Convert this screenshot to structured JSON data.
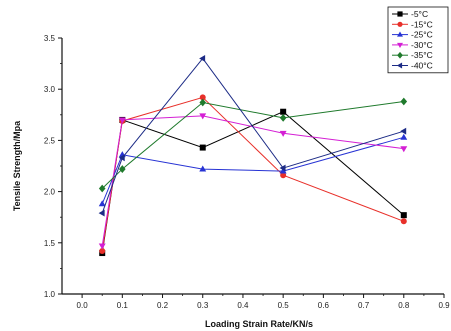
{
  "chart_data": {
    "type": "line",
    "xlabel": "Loading Strain Rate/KN/s",
    "ylabel": "Tensile Strength/Mpa",
    "xlim": [
      -0.05,
      0.9
    ],
    "ylim": [
      1.0,
      3.5
    ],
    "x_ticks": [
      0.0,
      0.1,
      0.2,
      0.3,
      0.4,
      0.5,
      0.6,
      0.7,
      0.8,
      0.9
    ],
    "x_tick_labels": [
      "0.0",
      "0.1",
      "0.2",
      "0.3",
      "0.4",
      "0.5",
      "0.6",
      "0.7",
      "0.8",
      "0.9"
    ],
    "y_ticks": [
      1.0,
      1.5,
      2.0,
      2.5,
      3.0,
      3.5
    ],
    "y_tick_labels": [
      "1.0",
      "1.5",
      "2.0",
      "2.5",
      "3.0",
      "3.5"
    ],
    "grid": false,
    "legend_position": "top-right",
    "series": [
      {
        "name": "-5°C",
        "color": "#000000",
        "marker": "square",
        "x": [
          0.05,
          0.1,
          0.3,
          0.5,
          0.8
        ],
        "y": [
          1.4,
          2.7,
          2.43,
          2.78,
          1.77
        ]
      },
      {
        "name": "-15°C",
        "color": "#e8302a",
        "marker": "circle",
        "x": [
          0.05,
          0.1,
          0.3,
          0.5,
          0.8
        ],
        "y": [
          1.42,
          2.69,
          2.92,
          2.16,
          1.71
        ]
      },
      {
        "name": "-25°C",
        "color": "#2733d4",
        "marker": "triangle-up",
        "x": [
          0.05,
          0.1,
          0.3,
          0.5,
          0.8
        ],
        "y": [
          1.88,
          2.36,
          2.22,
          2.2,
          2.53
        ]
      },
      {
        "name": "-30°C",
        "color": "#d41fd4",
        "marker": "triangle-down",
        "x": [
          0.05,
          0.1,
          0.3,
          0.5,
          0.8
        ],
        "y": [
          1.47,
          2.7,
          2.74,
          2.57,
          2.42
        ]
      },
      {
        "name": "-35°C",
        "color": "#1f7a2c",
        "marker": "diamond",
        "x": [
          0.05,
          0.1,
          0.3,
          0.5,
          0.8
        ],
        "y": [
          2.03,
          2.22,
          2.87,
          2.72,
          2.88
        ]
      },
      {
        "name": "-40°C",
        "color": "#1c2b86",
        "marker": "triangle-left",
        "x": [
          0.05,
          0.1,
          0.3,
          0.5,
          0.8
        ],
        "y": [
          1.79,
          2.33,
          3.3,
          2.23,
          2.59
        ]
      }
    ]
  }
}
